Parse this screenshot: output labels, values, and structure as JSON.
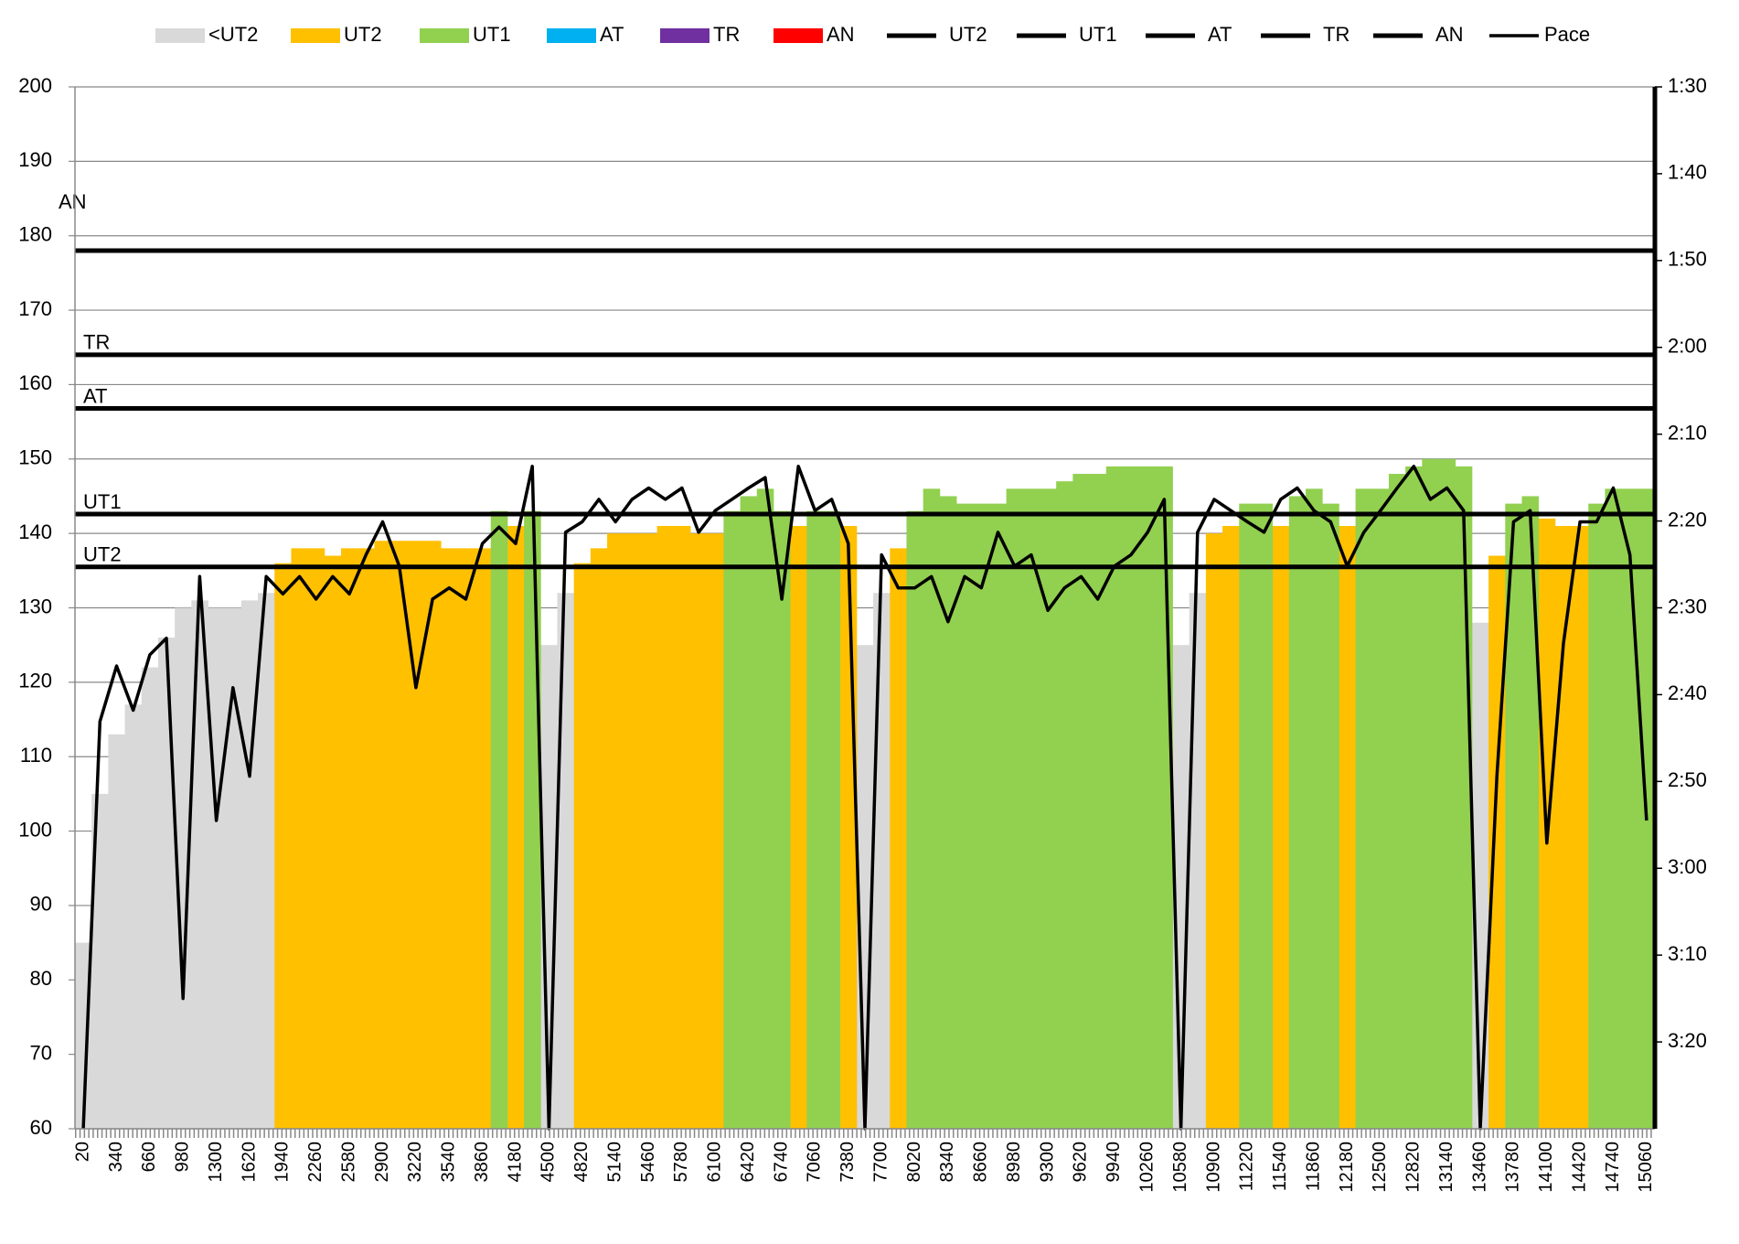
{
  "chart_data": {
    "type": "combo",
    "grid": true,
    "categories": [
      20,
      null,
      340,
      null,
      660,
      null,
      980,
      null,
      1300,
      null,
      1620,
      null,
      1940,
      null,
      2260,
      null,
      2580,
      null,
      2900,
      null,
      3220,
      null,
      3540,
      null,
      3860,
      null,
      4180,
      null,
      4500,
      null,
      4820,
      null,
      5140,
      null,
      5460,
      null,
      5780,
      null,
      6100,
      null,
      6420,
      null,
      6740,
      null,
      7060,
      null,
      7380,
      null,
      7700,
      null,
      8020,
      null,
      8340,
      null,
      8660,
      null,
      8980,
      null,
      9300,
      null,
      9620,
      null,
      9940,
      null,
      10260,
      null,
      10580,
      null,
      10900,
      null,
      11220,
      null,
      11540,
      null,
      11860,
      null,
      12180,
      null,
      12500,
      null,
      12820,
      null,
      13140,
      null,
      13460,
      null,
      13780,
      null,
      14100,
      null,
      14420,
      null,
      14740,
      null,
      15060
    ],
    "ylim": [
      60,
      200
    ],
    "yticks": [
      60,
      70,
      80,
      90,
      100,
      110,
      120,
      130,
      140,
      150,
      160,
      170,
      180,
      190,
      200
    ],
    "y2lim": [
      210,
      90
    ],
    "y2ticks": [
      {
        "value": 90,
        "label": "1:30"
      },
      {
        "value": 100,
        "label": "1:40"
      },
      {
        "value": 110,
        "label": "1:50"
      },
      {
        "value": 120,
        "label": "2:00"
      },
      {
        "value": 130,
        "label": "2:10"
      },
      {
        "value": 140,
        "label": "2:20"
      },
      {
        "value": 150,
        "label": "2:30"
      },
      {
        "value": 160,
        "label": "2:40"
      },
      {
        "value": 170,
        "label": "2:50"
      },
      {
        "value": 180,
        "label": "3:00"
      },
      {
        "value": 190,
        "label": "3:10"
      },
      {
        "value": 200,
        "label": "3:20"
      }
    ],
    "series": [
      {
        "name": "<UT2",
        "type": "bar",
        "color": "#d9d9d9",
        "values": [
          85,
          105,
          113,
          117,
          122,
          126,
          130,
          131,
          130,
          130,
          131,
          132,
          null,
          null,
          null,
          null,
          null,
          null,
          null,
          null,
          null,
          null,
          null,
          null,
          null,
          null,
          null,
          null,
          125,
          132,
          null,
          null,
          null,
          null,
          null,
          null,
          null,
          null,
          null,
          null,
          null,
          null,
          null,
          null,
          null,
          null,
          null,
          125,
          132,
          null,
          null,
          null,
          null,
          null,
          null,
          null,
          null,
          null,
          null,
          null,
          null,
          null,
          null,
          null,
          null,
          null,
          125,
          132,
          null,
          null,
          null,
          null,
          null,
          null,
          null,
          null,
          null,
          null,
          null,
          null,
          null,
          null,
          null,
          null,
          128,
          null,
          null,
          null,
          null,
          null,
          null,
          null,
          null,
          null,
          null
        ]
      },
      {
        "name": "UT2",
        "type": "bar",
        "color": "#ffc000",
        "values": [
          null,
          null,
          null,
          null,
          null,
          null,
          null,
          null,
          null,
          null,
          null,
          null,
          136,
          138,
          138,
          137,
          138,
          138,
          139,
          139,
          139,
          139,
          138,
          138,
          138,
          null,
          141,
          null,
          null,
          null,
          136,
          138,
          140,
          140,
          140,
          141,
          141,
          140,
          140,
          null,
          null,
          null,
          null,
          141,
          null,
          null,
          141,
          null,
          null,
          138,
          null,
          null,
          null,
          null,
          null,
          null,
          null,
          null,
          null,
          null,
          null,
          null,
          null,
          null,
          null,
          null,
          null,
          null,
          140,
          141,
          null,
          null,
          141,
          null,
          null,
          null,
          141,
          null,
          null,
          null,
          null,
          null,
          null,
          null,
          null,
          137,
          null,
          null,
          142,
          141,
          141,
          null,
          null,
          null,
          null
        ]
      },
      {
        "name": "UT1",
        "type": "bar",
        "color": "#92d050",
        "values": [
          null,
          null,
          null,
          null,
          null,
          null,
          null,
          null,
          null,
          null,
          null,
          null,
          null,
          null,
          null,
          null,
          null,
          null,
          null,
          null,
          null,
          null,
          null,
          null,
          null,
          143,
          null,
          143,
          null,
          null,
          null,
          null,
          null,
          null,
          null,
          null,
          null,
          null,
          null,
          143,
          145,
          146,
          143,
          null,
          143,
          143,
          null,
          null,
          null,
          null,
          143,
          146,
          145,
          144,
          144,
          144,
          146,
          146,
          146,
          147,
          148,
          148,
          149,
          149,
          149,
          149,
          null,
          null,
          null,
          null,
          144,
          144,
          null,
          145,
          146,
          144,
          null,
          146,
          146,
          148,
          149,
          150,
          150,
          149,
          null,
          null,
          144,
          145,
          null,
          null,
          null,
          144,
          146,
          146,
          146
        ]
      },
      {
        "name": "AT",
        "type": "bar",
        "color": "#00b0f0",
        "values": [
          null,
          null,
          null,
          null,
          null,
          null,
          null,
          null,
          null,
          null,
          null,
          null,
          null,
          null,
          null,
          null,
          null,
          null,
          null,
          null,
          null,
          null,
          null,
          null,
          null,
          null,
          null,
          null,
          null,
          null,
          null,
          null,
          null,
          null,
          null,
          null,
          null,
          null,
          null,
          null,
          null,
          null,
          null,
          null,
          null,
          null,
          null,
          null,
          null,
          null,
          null,
          null,
          null,
          null,
          null,
          null,
          null,
          null,
          null,
          null,
          null,
          null,
          null,
          null,
          null,
          null,
          null,
          null,
          null,
          null,
          null,
          null,
          null,
          null,
          null,
          null,
          null,
          null,
          null,
          null,
          null,
          null,
          null,
          null,
          null,
          null,
          null,
          null,
          null,
          null,
          null,
          null,
          null,
          null,
          null
        ]
      },
      {
        "name": "TR",
        "type": "bar",
        "color": "#7030a0",
        "values": [
          null,
          null,
          null,
          null,
          null,
          null,
          null,
          null,
          null,
          null,
          null,
          null,
          null,
          null,
          null,
          null,
          null,
          null,
          null,
          null,
          null,
          null,
          null,
          null,
          null,
          null,
          null,
          null,
          null,
          null,
          null,
          null,
          null,
          null,
          null,
          null,
          null,
          null,
          null,
          null,
          null,
          null,
          null,
          null,
          null,
          null,
          null,
          null,
          null,
          null,
          null,
          null,
          null,
          null,
          null,
          null,
          null,
          null,
          null,
          null,
          null,
          null,
          null,
          null,
          null,
          null,
          null,
          null,
          null,
          null,
          null,
          null,
          null,
          null,
          null,
          null,
          null,
          null,
          null,
          null,
          null,
          null,
          null,
          null,
          null,
          null,
          null,
          null,
          null,
          null,
          null,
          null,
          null,
          null,
          null
        ]
      },
      {
        "name": "AN",
        "type": "bar",
        "color": "#ff0000",
        "values": [
          null,
          null,
          null,
          null,
          null,
          null,
          null,
          null,
          null,
          null,
          null,
          null,
          null,
          null,
          null,
          null,
          null,
          null,
          null,
          null,
          null,
          null,
          null,
          null,
          null,
          null,
          null,
          null,
          null,
          null,
          null,
          null,
          null,
          null,
          null,
          null,
          null,
          null,
          null,
          null,
          null,
          null,
          null,
          null,
          null,
          null,
          null,
          null,
          null,
          null,
          null,
          null,
          null,
          null,
          null,
          null,
          null,
          null,
          null,
          null,
          null,
          null,
          null,
          null,
          null,
          null,
          null,
          null,
          null,
          null,
          null,
          null,
          null,
          null,
          null,
          null,
          null,
          null,
          null,
          null,
          null,
          null,
          null,
          null,
          null,
          null,
          null,
          null,
          null,
          null,
          null,
          null,
          null,
          null,
          null
        ]
      },
      {
        "name": "Pace",
        "type": "line",
        "axis": "y2",
        "color": "#000000",
        "values": [
          210,
          163.1,
          156.7,
          161.8,
          155.4,
          153.5,
          195.0,
          146.4,
          174.5,
          159.2,
          169.4,
          146.4,
          148.4,
          146.4,
          149.0,
          146.4,
          148.4,
          143.9,
          140.1,
          145.2,
          159.2,
          149.0,
          147.7,
          149.0,
          142.6,
          140.7,
          142.6,
          133.7,
          210,
          141.3,
          140.1,
          137.5,
          140.1,
          137.5,
          136.2,
          137.5,
          136.2,
          141.3,
          138.8,
          137.5,
          136.2,
          135.0,
          149.0,
          133.7,
          138.8,
          137.5,
          142.6,
          210,
          143.9,
          147.7,
          147.7,
          146.4,
          151.6,
          146.4,
          147.7,
          141.3,
          145.2,
          143.9,
          150.3,
          147.7,
          146.4,
          149.0,
          145.2,
          143.9,
          141.3,
          137.5,
          210,
          141.3,
          137.5,
          138.8,
          140.1,
          141.3,
          137.5,
          136.2,
          138.8,
          140.1,
          145.2,
          141.3,
          138.8,
          136.2,
          133.7,
          137.5,
          136.2,
          138.8,
          210,
          169.4,
          140.1,
          138.8,
          177.1,
          154.1,
          140.1,
          140.1,
          136.2,
          143.9,
          174.5
        ]
      }
    ],
    "reference_lines": [
      {
        "name": "UT2",
        "label": "UT2",
        "value": 135.5,
        "color": "#000000"
      },
      {
        "name": "UT1",
        "label": "UT1",
        "value": 142.6,
        "color": "#000000"
      },
      {
        "name": "AT",
        "label": "AT",
        "value": 156.8,
        "color": "#000000"
      },
      {
        "name": "TR",
        "label": "TR",
        "value": 164,
        "color": "#000000"
      },
      {
        "name": "AN",
        "label": "AN",
        "value": 178,
        "color": "#000000"
      }
    ]
  }
}
